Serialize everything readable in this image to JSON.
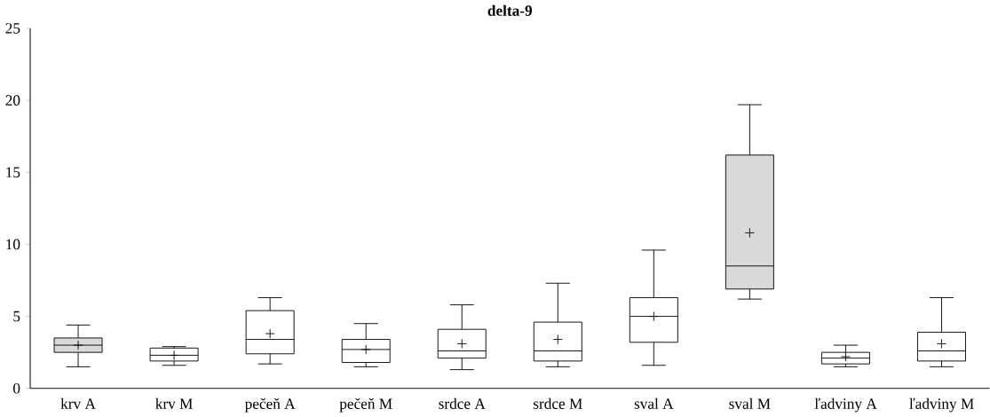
{
  "chart_data": {
    "type": "box",
    "title": "delta-9",
    "categories": [
      "krv A",
      "krv M",
      "pečeň A",
      "pečeň M",
      "srdce A",
      "srdce M",
      "sval A",
      "sval M",
      "ľadviny A",
      "ľadviny M"
    ],
    "boxes": [
      {
        "low": 1.5,
        "q1": 2.5,
        "median": 3.0,
        "q3": 3.5,
        "high": 4.4,
        "mean": 3.0
      },
      {
        "low": 1.6,
        "q1": 1.9,
        "median": 2.3,
        "q3": 2.8,
        "high": 2.9,
        "mean": 2.3
      },
      {
        "low": 1.7,
        "q1": 2.4,
        "median": 3.4,
        "q3": 5.4,
        "high": 6.3,
        "mean": 3.8
      },
      {
        "low": 1.5,
        "q1": 1.8,
        "median": 2.7,
        "q3": 3.4,
        "high": 4.5,
        "mean": 2.7
      },
      {
        "low": 1.3,
        "q1": 2.1,
        "median": 2.6,
        "q3": 4.1,
        "high": 5.8,
        "mean": 3.1
      },
      {
        "low": 1.5,
        "q1": 1.9,
        "median": 2.6,
        "q3": 4.6,
        "high": 7.3,
        "mean": 3.4
      },
      {
        "low": 1.6,
        "q1": 3.2,
        "median": 5.0,
        "q3": 6.3,
        "high": 9.6,
        "mean": 5.0
      },
      {
        "low": 6.2,
        "q1": 6.9,
        "median": 8.5,
        "q3": 16.2,
        "high": 19.7,
        "mean": 10.8
      },
      {
        "low": 1.5,
        "q1": 1.7,
        "median": 2.1,
        "q3": 2.5,
        "high": 3.0,
        "mean": 2.2
      },
      {
        "low": 1.5,
        "q1": 1.9,
        "median": 2.6,
        "q3": 3.9,
        "high": 6.3,
        "mean": 3.1
      }
    ],
    "colors": [
      "#d9d9d9",
      "#ffffff",
      "#ffffff",
      "#ffffff",
      "#ffffff",
      "#ffffff",
      "#ffffff",
      "#d9d9d9",
      "#ffffff",
      "#ffffff"
    ],
    "ylim": [
      0,
      25
    ],
    "yticks": [
      0,
      5,
      10,
      15,
      20,
      25
    ],
    "grid": false,
    "marker": "cross"
  }
}
